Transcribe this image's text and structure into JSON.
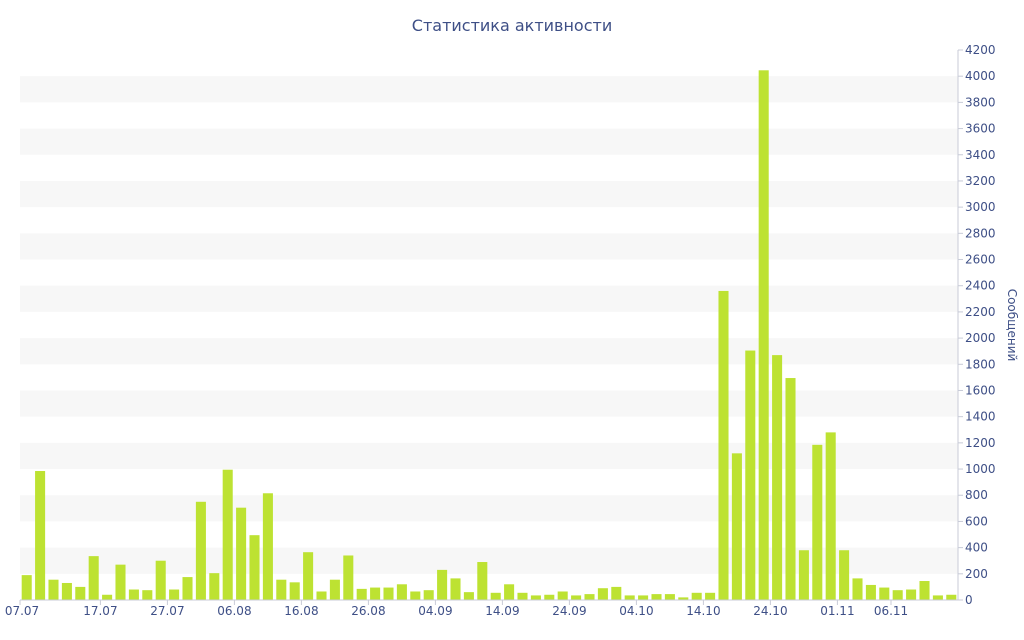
{
  "chart_data": {
    "type": "bar",
    "title": "Статистика активности",
    "xlabel": "",
    "ylabel": "Сообщений",
    "y_axis_side": "right",
    "ylim": [
      0,
      4200
    ],
    "y_ticks": [
      0,
      200,
      400,
      600,
      800,
      1000,
      1200,
      1400,
      1600,
      1800,
      2000,
      2200,
      2400,
      2600,
      2800,
      3000,
      3200,
      3400,
      3600,
      3800,
      4000,
      4200
    ],
    "x_tick_labels": [
      "07.07",
      "17.07",
      "27.07",
      "06.08",
      "16.08",
      "26.08",
      "04.09",
      "14.09",
      "24.09",
      "04.10",
      "14.10",
      "24.10",
      "01.11",
      "06.11"
    ],
    "x_tick_index": [
      0,
      6,
      11,
      16,
      21,
      26,
      31,
      36,
      41,
      46,
      51,
      56,
      61,
      65
    ],
    "colors": {
      "bar": "#bde232",
      "band": "#f7f7f7",
      "text": "#3e4f86"
    },
    "grid": "alternating horizontal bands",
    "legend": "none",
    "values": [
      190,
      985,
      155,
      130,
      100,
      335,
      40,
      270,
      80,
      75,
      300,
      80,
      175,
      750,
      205,
      995,
      705,
      495,
      815,
      155,
      135,
      365,
      65,
      155,
      340,
      85,
      95,
      95,
      120,
      65,
      75,
      230,
      165,
      60,
      290,
      55,
      120,
      55,
      35,
      40,
      65,
      35,
      45,
      90,
      100,
      35,
      35,
      45,
      45,
      20,
      55,
      55,
      2360,
      1120,
      1905,
      4045,
      1870,
      1695,
      380,
      1185,
      1280,
      380,
      165,
      115,
      95,
      75,
      80,
      145,
      35,
      40
    ]
  }
}
